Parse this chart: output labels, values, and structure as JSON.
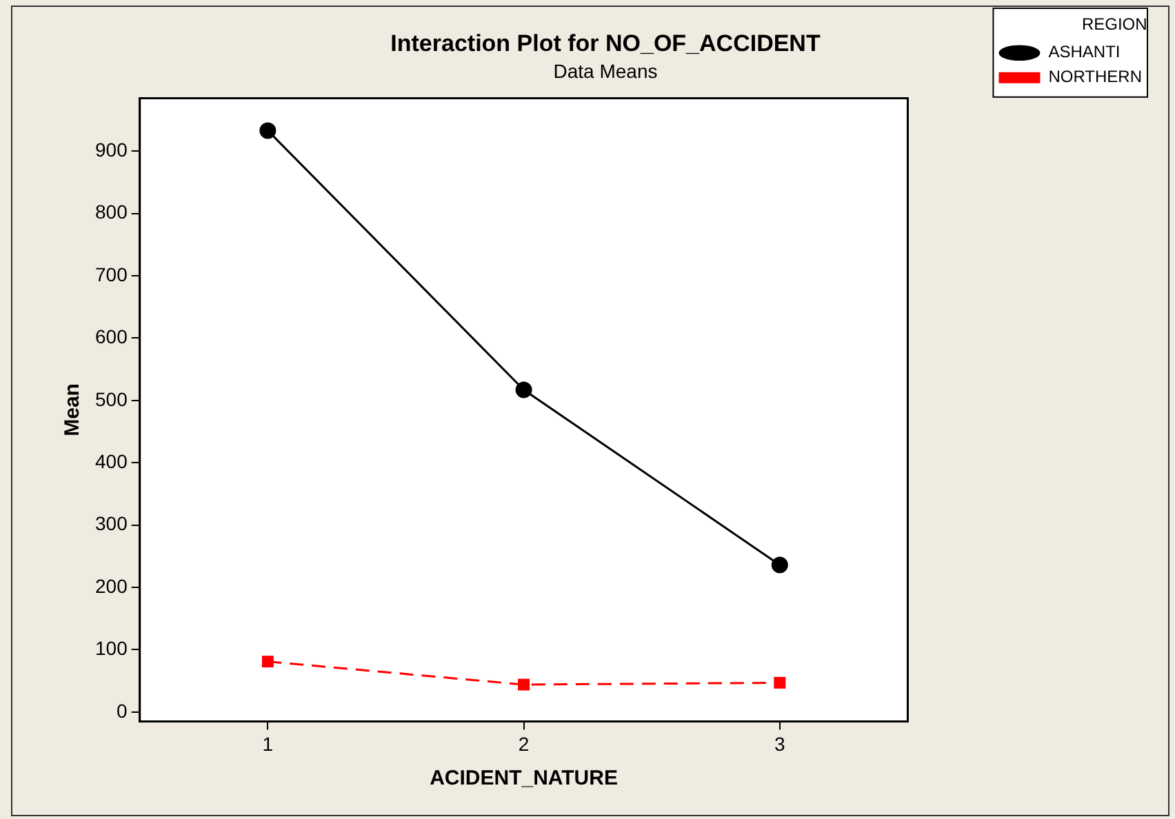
{
  "chart_data": {
    "type": "line",
    "title": "Interaction Plot for NO_OF_ACCIDENT",
    "subtitle": "Data Means",
    "xlabel": "ACIDENT_NATURE",
    "ylabel": "Mean",
    "legend_title": "REGION",
    "categories": [
      "1",
      "2",
      "3"
    ],
    "series": [
      {
        "name": "ASHANTI",
        "color": "#000000",
        "values": [
          933,
          517,
          236
        ],
        "marker": "circle",
        "line_style": "solid"
      },
      {
        "name": "NORTHERN",
        "color": "#ff0000",
        "values": [
          81,
          44,
          47
        ],
        "marker": "square",
        "line_style": "dashed"
      }
    ],
    "ylim": [
      -15,
      985
    ],
    "yticks": [
      0,
      100,
      200,
      300,
      400,
      500,
      600,
      700,
      800,
      900
    ],
    "grid": false,
    "legend": "right"
  }
}
